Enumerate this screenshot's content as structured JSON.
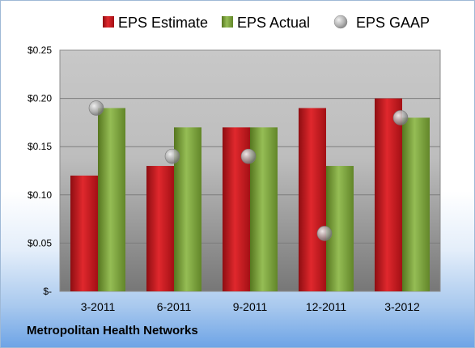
{
  "footer": {
    "company": "Metropolitan Health Networks"
  },
  "colors": {
    "estimate": "#c8161b",
    "actual": "#79a33c",
    "gaap": "#9a9a9a"
  },
  "chart_data": {
    "type": "bar",
    "categories": [
      "3-2011",
      "6-2011",
      "9-2011",
      "12-2011",
      "3-2012"
    ],
    "series": [
      {
        "name": "EPS Estimate",
        "type": "bar",
        "values": [
          0.12,
          0.13,
          0.17,
          0.19,
          0.2
        ]
      },
      {
        "name": "EPS Actual",
        "type": "bar",
        "values": [
          0.19,
          0.17,
          0.17,
          0.13,
          0.18
        ]
      },
      {
        "name": "EPS GAAP",
        "type": "scatter",
        "values": [
          0.19,
          0.14,
          0.14,
          0.06,
          0.18
        ]
      }
    ],
    "ylim": [
      0,
      0.25
    ],
    "yticks": [
      0,
      0.05,
      0.1,
      0.15,
      0.2,
      0.25
    ],
    "ytick_labels": [
      "$-",
      "$0.05",
      "$0.10",
      "$0.15",
      "$0.20",
      "$0.25"
    ],
    "grid": true,
    "legend_position": "top"
  }
}
